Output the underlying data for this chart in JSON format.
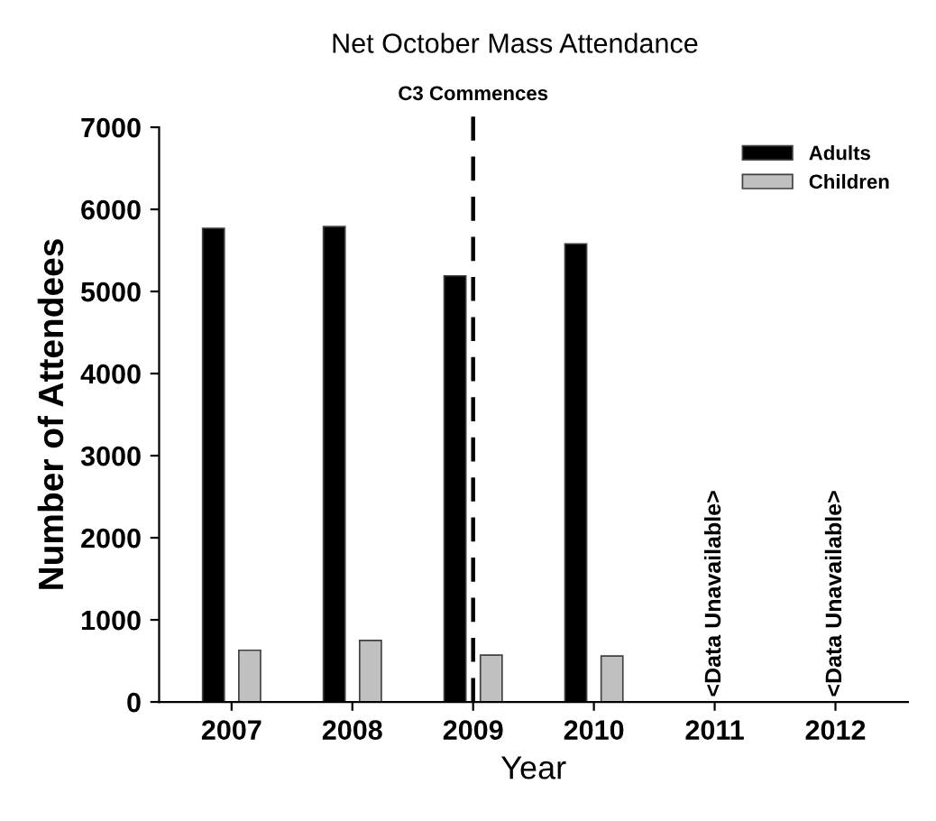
{
  "chart_data": {
    "type": "bar",
    "title": "Net October Mass Attendance",
    "xlabel": "Year",
    "ylabel": "Number of Attendees",
    "categories": [
      "2007",
      "2008",
      "2009",
      "2010",
      "2011",
      "2012"
    ],
    "series": [
      {
        "name": "Adults",
        "color": "#000000",
        "values": [
          5770,
          5790,
          5190,
          5580,
          null,
          null
        ]
      },
      {
        "name": "Children",
        "color": "#c0c0c0",
        "values": [
          630,
          750,
          570,
          560,
          null,
          null
        ]
      }
    ],
    "ylim": [
      0,
      7000
    ],
    "yticks": [
      0,
      1000,
      2000,
      3000,
      4000,
      5000,
      6000,
      7000
    ],
    "grid": false,
    "legend": "top right",
    "ref_lines": [
      {
        "axis": "x",
        "value": "2009",
        "label": "C3 Commences",
        "color": "#000000",
        "line_style": "dashed"
      }
    ],
    "annotations": [
      "<Data Unavailable>",
      "<Data Unavailable>"
    ]
  }
}
